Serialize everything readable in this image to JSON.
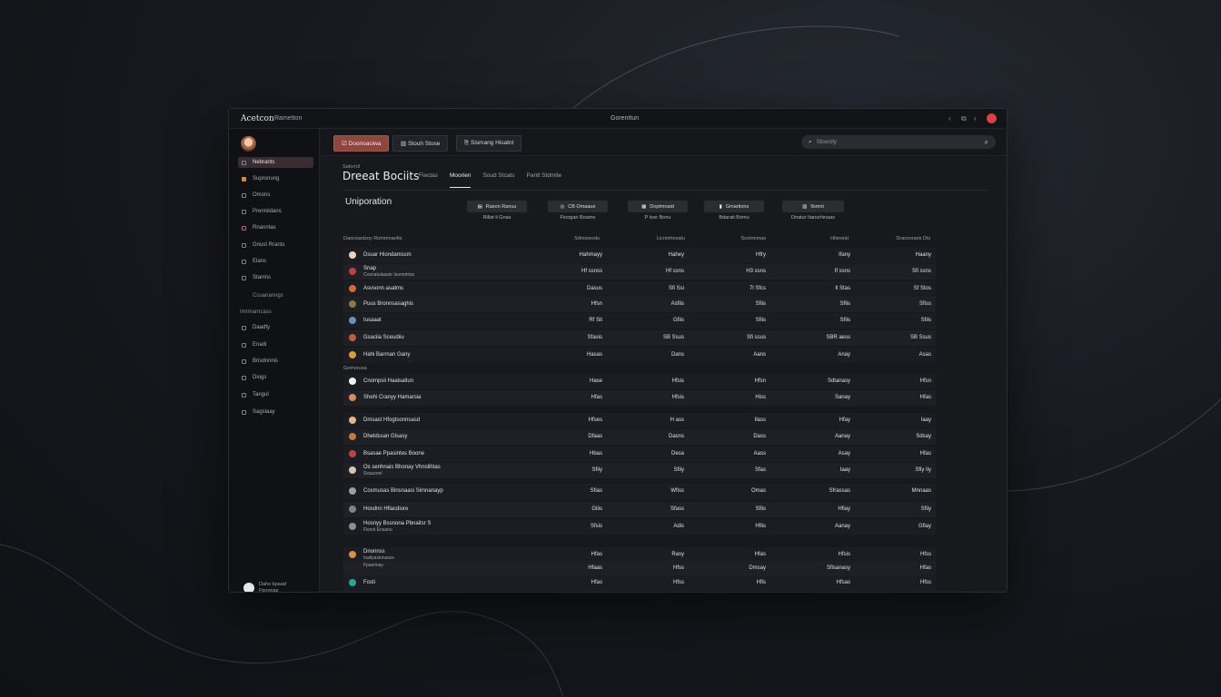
{
  "app": {
    "name": "Acetcon",
    "subtitle": "Rametton",
    "window_title": "Gorenttun",
    "controls": [
      "‹",
      "⧉",
      "‹"
    ]
  },
  "sidebar": {
    "items": [
      {
        "label": "Nebrants",
        "icon": "grid-icon",
        "active": true
      },
      {
        "label": "Supronung",
        "icon": "folder-icon"
      },
      {
        "label": "Omons",
        "icon": "pin-icon"
      },
      {
        "label": "Prenniidans",
        "icon": "list-icon"
      },
      {
        "label": "Rnanntas",
        "icon": "chart-icon"
      },
      {
        "label": "Gnust Rrants",
        "icon": "globe-icon"
      },
      {
        "label": "Elans",
        "icon": "doc-icon"
      },
      {
        "label": "Stanins",
        "icon": "bars-icon"
      },
      {
        "label": "Ccuananngs",
        "icon": "",
        "sub": true
      },
      {
        "label": "Imrmarncass",
        "icon": "",
        "sub": true
      },
      {
        "label": "Daadfy",
        "icon": "tag-icon"
      },
      {
        "label": "Enadi",
        "icon": "box-icon"
      },
      {
        "label": "Brisdnnnis",
        "icon": "stack-icon"
      },
      {
        "label": "Diogs",
        "icon": "note-icon"
      },
      {
        "label": "Tangul",
        "icon": "tile-icon"
      },
      {
        "label": "Sagslaay",
        "icon": "gear-icon"
      }
    ],
    "user": {
      "name": "Daho bpaad",
      "role": "Fpnonas"
    }
  },
  "toolbar": {
    "primary": "☑ Doonoaciwa",
    "btn2": "▥  Stouh Stose",
    "btn3": "⎘  Sismang Hisatnt",
    "search_placeholder": "Sbwstly"
  },
  "content": {
    "breadcrumb": "Saforrid",
    "title": "Dreeat Bociits",
    "tabs": [
      "Fiectas",
      "Moorien",
      "Soud Stcats",
      "Pantl Stdmite"
    ],
    "active_tab": 1,
    "section": "Uniporation",
    "filters": [
      {
        "chip": "Rason Ranuu",
        "icon": "▤",
        "caption": "Rillat il Gnas"
      },
      {
        "chip": "CB Omaaue",
        "icon": "◎",
        "caption": "Fioogan Boame"
      },
      {
        "chip": "Doptmnaid",
        "icon": "▦",
        "caption": "P Ioer Bonu"
      },
      {
        "chip": "Gmartions",
        "icon": "▮",
        "caption": "Bdarati Bomu"
      },
      {
        "chip": "Ilsmnt",
        "icon": "▥",
        "caption": "Dnatur Itansrhinaas"
      }
    ],
    "headers": [
      "Daocoastzoy Rommnaotts",
      "Sdnoseodu",
      "Licnmhnsatu",
      "Sooinnmas",
      "Hilsreiat",
      "Dracosraris Dis"
    ]
  },
  "rows_a": [
    {
      "name": "Dsuar Hiondamssm",
      "color": "#e9d3c4",
      "v": [
        "Hahmayy",
        "Hahey",
        "Hfry",
        "Ifany",
        "Haany"
      ]
    },
    {
      "name": "Snap",
      "sub": "Cosnatulaaste Isonntmss",
      "color": "#b84248",
      "v": [
        "Hf ssnss",
        "Hf ssns",
        "H3 ssns",
        "If ssns",
        "Sfi ssns"
      ]
    },
    {
      "name": "Asvsonn asatms",
      "color": "#d46a3b",
      "v": [
        "Dasus",
        "Sfi Ssi",
        "7l Sfcs",
        "Il Stas",
        "Sf Stos"
      ]
    },
    {
      "name": "Puus Bronnsasaghis",
      "color": "#8b7a46",
      "v": [
        "Hfsn",
        "Asfiis",
        "Sfiis",
        "Sflis",
        "Sfiss"
      ]
    },
    {
      "name": "Iusaaat",
      "color": "#6d8fb8",
      "v": [
        "Rf Sit",
        "Gfiis",
        "Sfiis",
        "Sfiis",
        "Sfiis"
      ]
    },
    {
      "name": "Gsaciia Sceudiiu",
      "color": "#c25a4a",
      "v": [
        "Sfasis",
        "SB Ssus",
        "Sfi ssus",
        "SBR aess",
        "SB Ssus"
      ]
    },
    {
      "name": "Hahi Barrnan Gany",
      "color": "#d99b3d",
      "v": [
        "Hasas",
        "Dans",
        "Aans",
        "Anay",
        "Asas"
      ]
    }
  ],
  "group_label": "Gomorusa",
  "rows_b": [
    {
      "name": "Cnompsii Haaisatiun",
      "color": "#eef0f2",
      "v": [
        "Hase",
        "Hfsis",
        "Hfsn",
        "Sdtanasy",
        "Hfsn"
      ]
    },
    {
      "name": "Shehi Cranyy Hamarsia",
      "color": "#d88c5c",
      "v": [
        "Hfas",
        "Hfsis",
        "Hiss",
        "Sanay",
        "Hfas"
      ]
    }
  ],
  "rows_c": [
    {
      "name": "Dmsast Hfogtsonnsasd",
      "color": "#e6b58a",
      "v": [
        "Hfses",
        "H ass",
        "Ilass",
        "Hfay",
        "Iaay"
      ]
    },
    {
      "name": "Dheldssan Glsasy",
      "color": "#c47a3f",
      "v": [
        "Dfaas",
        "Dasns",
        "Dass",
        "Aanay",
        "Sdsay"
      ]
    },
    {
      "name": "Bsasae Ppasintes Boone",
      "color": "#b54646",
      "v": [
        "Hbas",
        "Desa",
        "Aass",
        "Asay",
        "Hfas"
      ]
    },
    {
      "name": "Os senhnais Bhonay Vhnslihtas",
      "sub": "Sxauzonl",
      "color": "#d8c5b5",
      "v": [
        "Sfiiy",
        "Sfiiy",
        "Sfas",
        "Iaay",
        "Sfiy Iiy"
      ]
    },
    {
      "name": "Cosmusas Binsnaasi Simnanayp",
      "color": "#9aa0aa",
      "v": [
        "Sfias",
        "Wfiss",
        "Omas",
        "Sfrassas",
        "Mnnaas"
      ]
    },
    {
      "name": "Hosdnn Hfiacdiure",
      "color": "#7e838c",
      "v": [
        "Giiis",
        "Sfass",
        "Sfiis",
        "Hfiay",
        "Sfiiy"
      ]
    },
    {
      "name": "Hosnyy Bssnona Pbnaitsr S",
      "sub": "Fisnst Ensanu",
      "color": "#8a9099",
      "v": [
        "Sfsis",
        "Adis",
        "Hfiis",
        "Aanay",
        "Gfiay"
      ]
    }
  ],
  "rows_d": [
    {
      "name": "Dnonnss",
      "sub": "Ioaliyasinnasss",
      "color": "#d4904a",
      "v": [
        "Hfas",
        "Rasy",
        "Hfas",
        "Hfsis",
        "Hfss"
      ]
    },
    {
      "name": "",
      "sub": "Fpasnnay",
      "color": "",
      "v": [
        "Hfaas",
        "Hfss",
        "Dmsay",
        "Sfisanasy",
        "Hfas"
      ]
    },
    {
      "name": "Fosti",
      "color": "#2aa39b",
      "v": [
        "Hfas",
        "Hfss",
        "Hfis",
        "Hfsas",
        "Hfss"
      ]
    }
  ]
}
